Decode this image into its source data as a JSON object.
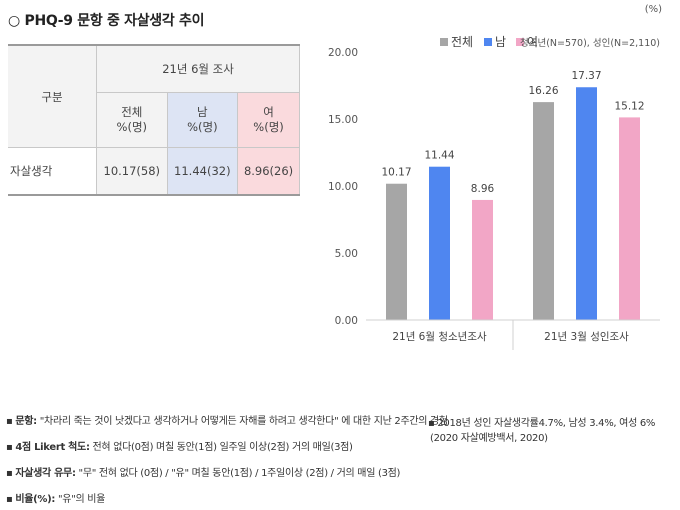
{
  "title": "○ PHQ-9 문항 중 자살생각 추이",
  "table": {
    "row_header": "구분",
    "survey_header": "21년 6월 조사",
    "columns": [
      {
        "name": "전체",
        "unit": "%(명)"
      },
      {
        "name": "남",
        "unit": "%(명)"
      },
      {
        "name": "여",
        "unit": "%(명)"
      }
    ],
    "rows": [
      {
        "label": "자살생각",
        "values": [
          "10.17(58)",
          "11.44(32)",
          "8.96(26)"
        ]
      }
    ]
  },
  "chart_data": {
    "type": "bar",
    "unit_label": "(%)",
    "categories": [
      "21년 6월 청소년조사",
      "21년 3월 성인조사"
    ],
    "series": [
      {
        "name": "전체",
        "color": "#a6a6a6",
        "values": [
          10.17,
          16.26
        ]
      },
      {
        "name": "남",
        "color": "#4f86f0",
        "values": [
          11.44,
          17.37
        ]
      },
      {
        "name": "여",
        "color": "#f2a6c6",
        "values": [
          8.96,
          15.12
        ]
      }
    ],
    "ylim": [
      0,
      20
    ],
    "yticks": [
      "0.00",
      "5.00",
      "10.00",
      "15.00",
      "20.00"
    ],
    "legend_note": "청소년(N=570), 성인(N=2,110)",
    "legend_position": "top-right",
    "grid": false
  },
  "notes": [
    {
      "bold": "문항:",
      "text": " \"차라리 죽는 것이 낫겠다고 생각하거나 어떻게든 자해를 하려고 생각한다\" 에 대한 지난 2주간의 경험"
    },
    {
      "bold": "4점 Likert 척도:",
      "text": " 전혀 없다(0점)    며칠 동안(1점)   일주일 이상(2점)   거의 매일(3점)"
    },
    {
      "bold": "자살생각 유무:",
      "text": " \"무\" 전혀 없다 (0점) / \"유\" 며칠 동안(1점) / 1주일이상 (2점) / 거의 매일 (3점)"
    },
    {
      "bold": "비율(%):",
      "text": " \"유\"의 비율"
    }
  ],
  "right_note": {
    "line1": "2018년 성인 자살생각률4.7%, 남성 3.4%, 여성 6%",
    "line2": "(2020 자살예방백서, 2020)"
  }
}
